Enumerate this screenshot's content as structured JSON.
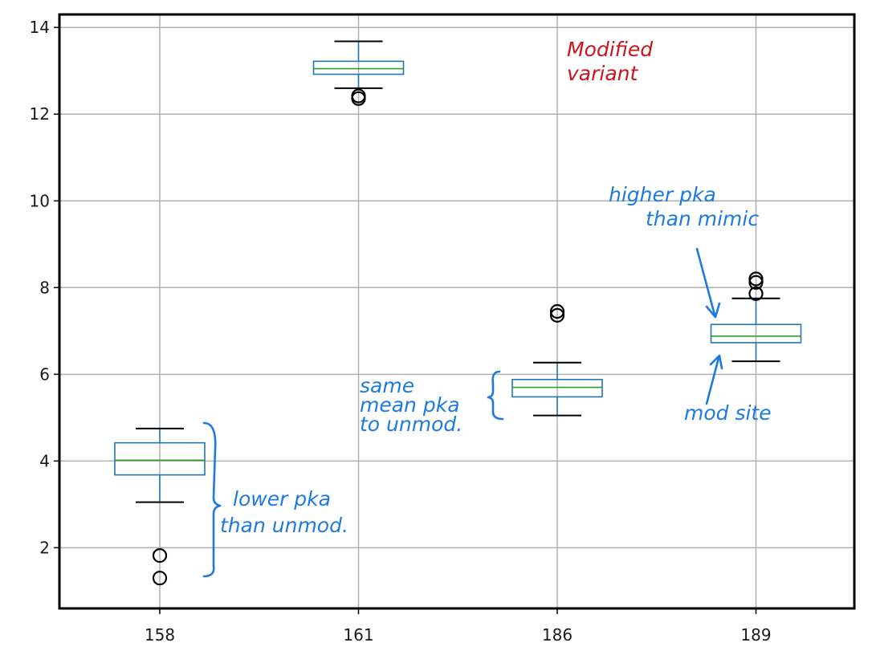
{
  "chart_data": {
    "type": "box",
    "title": "",
    "xlabel": "",
    "ylabel": "",
    "categories": [
      "158",
      "161",
      "186",
      "189"
    ],
    "y_ticks": [
      2,
      4,
      6,
      8,
      10,
      12,
      14
    ],
    "ylim": [
      0.6,
      14.3
    ],
    "grid": true,
    "legend": "none",
    "boxes": [
      {
        "category": "158",
        "whisker_low": 3.05,
        "q1": 3.68,
        "median": 4.02,
        "q3": 4.42,
        "whisker_high": 4.75,
        "outliers": [
          1.82,
          1.3
        ]
      },
      {
        "category": "161",
        "whisker_low": 12.6,
        "q1": 12.92,
        "median": 13.05,
        "q3": 13.22,
        "whisker_high": 13.68,
        "outliers": [
          12.42,
          12.36
        ]
      },
      {
        "category": "186",
        "whisker_low": 5.05,
        "q1": 5.48,
        "median": 5.7,
        "q3": 5.88,
        "whisker_high": 6.27,
        "outliers": [
          7.45,
          7.36
        ]
      },
      {
        "category": "189",
        "whisker_low": 6.3,
        "q1": 6.73,
        "median": 6.88,
        "q3": 7.15,
        "whisker_high": 7.75,
        "outliers": [
          8.2,
          8.12,
          7.86
        ]
      }
    ],
    "annotations": [
      {
        "id": "modified",
        "lines": [
          "Modified",
          "variant"
        ],
        "color": "#c8141e"
      },
      {
        "id": "higher",
        "lines": [
          "higher pka",
          "than mimic"
        ],
        "color": "#1f7ae0"
      },
      {
        "id": "same",
        "lines": [
          "same",
          "mean pka",
          "to unmod."
        ],
        "color": "#1f7ae0"
      },
      {
        "id": "modsite",
        "lines": [
          "mod site"
        ],
        "color": "#1f7ae0"
      },
      {
        "id": "lower",
        "lines": [
          "lower pka",
          "than unmod."
        ],
        "color": "#1f7ae0"
      }
    ]
  },
  "colors": {
    "box": "#1f77b4",
    "median": "#2ca02c",
    "whisker": "#000000",
    "grid": "#b0b0b0",
    "note_blue": "#1f7ae0",
    "note_red": "#c8141e"
  }
}
